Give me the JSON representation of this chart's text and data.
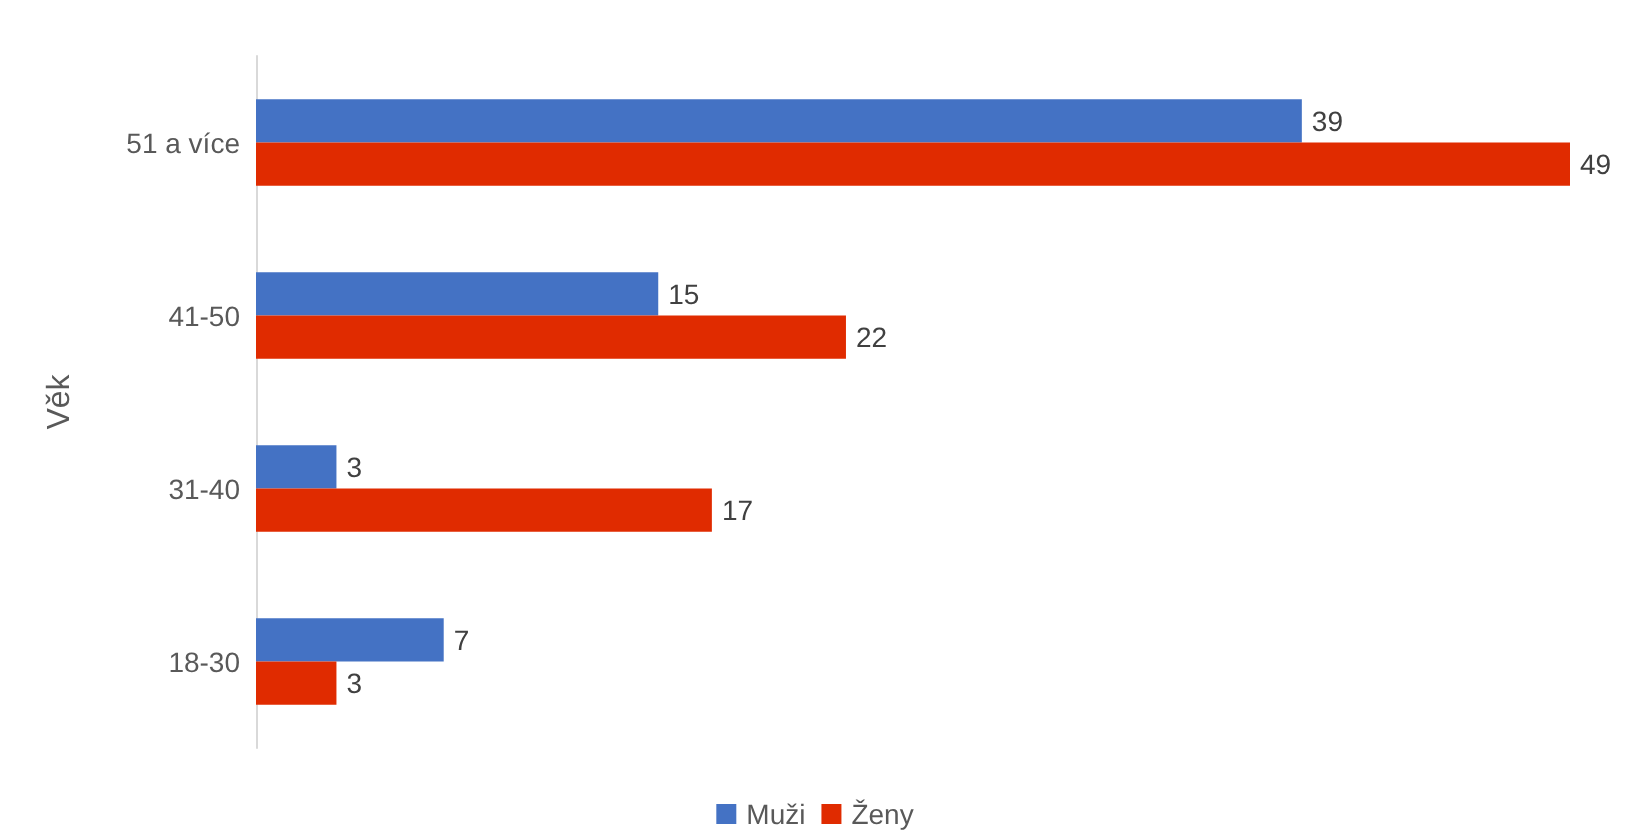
{
  "chart_data": {
    "type": "bar",
    "orientation": "horizontal",
    "ylabel": "Věk",
    "categories": [
      "51 a více",
      "41-50",
      "31-40",
      "18-30"
    ],
    "series": [
      {
        "name": "Muži",
        "color": "#4472c4",
        "values": [
          39,
          15,
          3,
          7
        ]
      },
      {
        "name": "Ženy",
        "color": "#e02b00",
        "values": [
          49,
          22,
          17,
          3
        ]
      }
    ],
    "data_labels": true,
    "grid": false,
    "legend": "bottom"
  }
}
